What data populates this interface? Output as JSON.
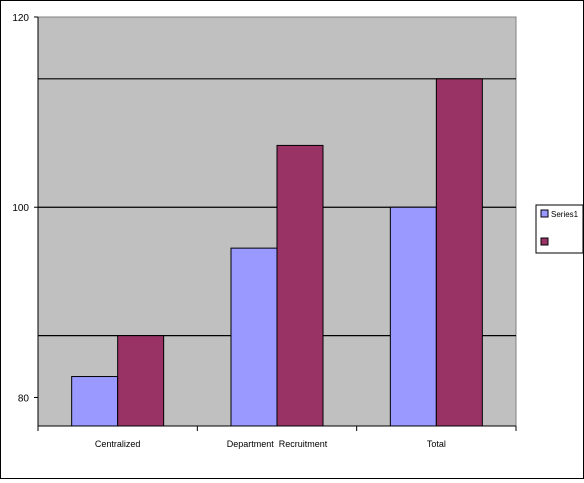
{
  "chart_data": {
    "type": "bar",
    "categories": [
      "Centralized",
      "Department  Recruitment",
      "Total"
    ],
    "series": [
      {
        "name": "Series1",
        "color": "#9999ff",
        "values": [
          82.2,
          95.7,
          100
        ]
      },
      {
        "color": "#993366",
        "values": [
          86.5,
          106.5,
          113.5
        ]
      }
    ],
    "ylim": [
      77,
      120
    ],
    "ytick_labels": [
      {
        "value": 80,
        "label": "80"
      },
      {
        "value": 100,
        "label": "100"
      },
      {
        "value": 120,
        "label": "120"
      }
    ],
    "gridlines": [
      86.5,
      100,
      113.5
    ],
    "plot_area_color": "#c0c0c0",
    "legend": "right",
    "title": "",
    "xlabel": "",
    "ylabel": ""
  }
}
